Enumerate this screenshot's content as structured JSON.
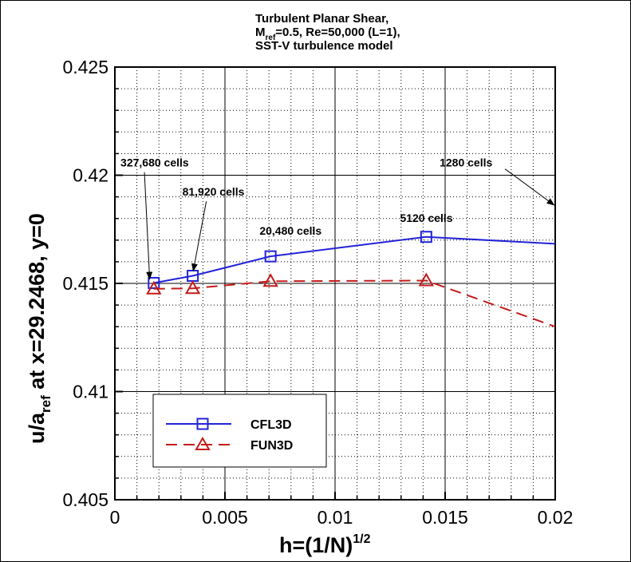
{
  "chart_data": {
    "type": "line",
    "title_lines": [
      {
        "text": "Turbulent Planar Shear,",
        "parts": [
          "Turbulent Planar Shear,"
        ]
      },
      {
        "text": "M_ref=0.5, Re=50,000 (L=1),",
        "parts": [
          "M",
          "ref",
          "=0.5, Re=50,000 (L=1),"
        ]
      },
      {
        "text": "SST-V turbulence model",
        "parts": [
          "SST-V turbulence model"
        ]
      }
    ],
    "xlabel": {
      "text": "h=(1/N)^1/2",
      "base": "h=(1/N)",
      "sup": "1/2"
    },
    "ylabel": {
      "text": "u/a_ref at x=29.2468, y=0",
      "pre": "u/a",
      "sub": "ref",
      "post": " at x=29.2468, y=0"
    },
    "xlim": [
      0,
      0.02
    ],
    "ylim": [
      0.405,
      0.425
    ],
    "x_ticks": [
      {
        "value": 0,
        "label": "0"
      },
      {
        "value": 0.005,
        "label": "0.005"
      },
      {
        "value": 0.01,
        "label": "0.01"
      },
      {
        "value": 0.015,
        "label": "0.015"
      },
      {
        "value": 0.02,
        "label": "0.02"
      }
    ],
    "y_ticks": [
      {
        "value": 0.405,
        "label": "0.405"
      },
      {
        "value": 0.41,
        "label": "0.41"
      },
      {
        "value": 0.415,
        "label": "0.415"
      },
      {
        "value": 0.42,
        "label": "0.42"
      },
      {
        "value": 0.425,
        "label": "0.425"
      }
    ],
    "x_minor_step": 0.001,
    "y_minor_step": 0.001,
    "grid": true,
    "legend_position": "bottom-left",
    "series": [
      {
        "name": "CFL3D",
        "color": "#2323d8",
        "marker": "square",
        "dash": "solid",
        "x": [
          0.001768,
          0.003536,
          0.007071,
          0.014142,
          0.02
        ],
        "y": [
          0.41502,
          0.41535,
          0.41625,
          0.41715,
          0.41683
        ],
        "marker_count": 4
      },
      {
        "name": "FUN3D",
        "color": "#c41a1a",
        "marker": "triangle",
        "dash": "dashed",
        "x": [
          0.001768,
          0.003536,
          0.007071,
          0.014142,
          0.02
        ],
        "y": [
          0.41475,
          0.41477,
          0.4151,
          0.41513,
          0.413
        ],
        "marker_count": 4
      }
    ],
    "annotations": [
      {
        "text": "327,680 cells",
        "x": 0.000255,
        "y": 0.4204,
        "target_x": 0.00158,
        "target_y": 0.4152
      },
      {
        "text": "81,920 cells",
        "x": 0.003065,
        "y": 0.41905,
        "target_x": 0.00356,
        "target_y": 0.41558
      },
      {
        "text": "20,480 cells",
        "x": 0.00657,
        "y": 0.41725,
        "target_x": null,
        "target_y": null
      },
      {
        "text": "5120 cells",
        "x": 0.01295,
        "y": 0.41785,
        "target_x": null,
        "target_y": null
      },
      {
        "text": "1280 cells",
        "x": 0.01475,
        "y": 0.4204,
        "target_x": 0.01995,
        "target_y": 0.41862
      }
    ],
    "legend_entries": [
      "CFL3D",
      "FUN3D"
    ]
  }
}
